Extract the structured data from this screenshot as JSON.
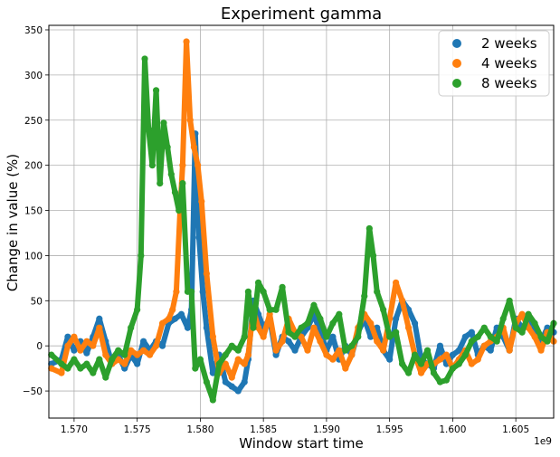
{
  "chart_data": {
    "type": "scatter",
    "title": "Experiment gamma",
    "xlabel": "Window start time",
    "ylabel": "Change in value (%)",
    "x_scale_label": "1e9",
    "xlim": [
      1.568,
      1.608
    ],
    "ylim": [
      -80,
      355
    ],
    "x_ticks": [
      1.57,
      1.575,
      1.58,
      1.585,
      1.59,
      1.595,
      1.6,
      1.605
    ],
    "x_tick_labels": [
      "1.570",
      "1.575",
      "1.580",
      "1.585",
      "1.590",
      "1.595",
      "1.600",
      "1.605"
    ],
    "y_ticks": [
      -50,
      0,
      50,
      100,
      150,
      200,
      250,
      300,
      350
    ],
    "y_tick_labels": [
      "−50",
      "0",
      "50",
      "100",
      "150",
      "200",
      "250",
      "300",
      "350"
    ],
    "grid": true,
    "legend_position": "top-right",
    "series": [
      {
        "name": "2 weeks",
        "color": "#1f77b4",
        "x": [
          1.5682,
          1.569,
          1.5695,
          1.57,
          1.5705,
          1.571,
          1.5715,
          1.572,
          1.5725,
          1.573,
          1.5735,
          1.574,
          1.5745,
          1.575,
          1.5755,
          1.576,
          1.5765,
          1.577,
          1.5775,
          1.578,
          1.5785,
          1.579,
          1.5793,
          1.5796,
          1.5799,
          1.5802,
          1.5805,
          1.581,
          1.5815,
          1.582,
          1.5825,
          1.583,
          1.5835,
          1.5838,
          1.5842,
          1.5846,
          1.585,
          1.5855,
          1.586,
          1.5865,
          1.587,
          1.5875,
          1.588,
          1.5885,
          1.589,
          1.5895,
          1.59,
          1.5905,
          1.591,
          1.5915,
          1.592,
          1.5925,
          1.593,
          1.5935,
          1.594,
          1.5945,
          1.595,
          1.5955,
          1.596,
          1.5965,
          1.597,
          1.5975,
          1.598,
          1.5985,
          1.599,
          1.5995,
          1.6,
          1.6005,
          1.601,
          1.6015,
          1.602,
          1.6025,
          1.603,
          1.6035,
          1.604,
          1.6045,
          1.605,
          1.6055,
          1.606,
          1.6065,
          1.607,
          1.6075,
          1.608
        ],
        "y": [
          -20,
          -15,
          10,
          -5,
          5,
          -8,
          10,
          30,
          5,
          -20,
          -10,
          -25,
          -10,
          -20,
          5,
          -5,
          5,
          0,
          25,
          30,
          35,
          20,
          40,
          235,
          120,
          60,
          20,
          -30,
          -10,
          -40,
          -45,
          -50,
          -40,
          -15,
          50,
          35,
          20,
          30,
          -10,
          10,
          5,
          -5,
          10,
          20,
          35,
          15,
          -5,
          10,
          -15,
          0,
          -10,
          15,
          30,
          10,
          20,
          -5,
          -15,
          30,
          50,
          40,
          25,
          -15,
          -20,
          -25,
          0,
          -20,
          -10,
          -5,
          10,
          15,
          -10,
          0,
          -5,
          20,
          10,
          -5,
          30,
          20,
          25,
          15,
          5,
          20,
          15
        ]
      },
      {
        "name": "4 weeks",
        "color": "#ff7f0e",
        "x": [
          1.5682,
          1.569,
          1.5695,
          1.57,
          1.5705,
          1.571,
          1.5715,
          1.572,
          1.5725,
          1.573,
          1.5735,
          1.574,
          1.5745,
          1.575,
          1.5755,
          1.576,
          1.5765,
          1.577,
          1.5775,
          1.5778,
          1.5781,
          1.5784,
          1.5786,
          1.5789,
          1.5792,
          1.5795,
          1.5798,
          1.5801,
          1.5805,
          1.581,
          1.5815,
          1.582,
          1.5825,
          1.583,
          1.5835,
          1.5838,
          1.5842,
          1.5846,
          1.585,
          1.5855,
          1.586,
          1.5865,
          1.587,
          1.5875,
          1.588,
          1.5885,
          1.589,
          1.5895,
          1.59,
          1.5905,
          1.591,
          1.5915,
          1.592,
          1.5925,
          1.593,
          1.5935,
          1.594,
          1.5945,
          1.595,
          1.5955,
          1.596,
          1.5965,
          1.597,
          1.5975,
          1.598,
          1.5985,
          1.599,
          1.5995,
          1.6,
          1.6005,
          1.601,
          1.6015,
          1.602,
          1.6025,
          1.603,
          1.6035,
          1.604,
          1.6045,
          1.605,
          1.6055,
          1.606,
          1.6065,
          1.607,
          1.6075,
          1.608
        ],
        "y": [
          -25,
          -30,
          0,
          10,
          -5,
          5,
          0,
          20,
          -10,
          -20,
          -15,
          -20,
          -5,
          -10,
          -5,
          -10,
          0,
          25,
          30,
          40,
          60,
          150,
          200,
          337,
          250,
          220,
          200,
          160,
          80,
          10,
          -30,
          -20,
          -35,
          -15,
          -20,
          -10,
          40,
          20,
          10,
          35,
          -5,
          5,
          30,
          15,
          10,
          -5,
          20,
          5,
          -10,
          -15,
          -5,
          -25,
          -10,
          20,
          35,
          25,
          5,
          -5,
          30,
          70,
          50,
          20,
          -10,
          -30,
          -20,
          -20,
          -15,
          -10,
          -25,
          -15,
          -5,
          -20,
          -15,
          0,
          5,
          10,
          20,
          -5,
          25,
          35,
          20,
          10,
          -5,
          15,
          5
        ]
      },
      {
        "name": "8 weeks",
        "color": "#2ca02c",
        "x": [
          1.5682,
          1.569,
          1.5695,
          1.57,
          1.5705,
          1.571,
          1.5715,
          1.572,
          1.5725,
          1.573,
          1.5735,
          1.574,
          1.5745,
          1.575,
          1.5753,
          1.5756,
          1.5759,
          1.5762,
          1.5765,
          1.5768,
          1.5771,
          1.5774,
          1.5777,
          1.578,
          1.5783,
          1.5786,
          1.579,
          1.5793,
          1.5796,
          1.58,
          1.5805,
          1.581,
          1.5815,
          1.582,
          1.5825,
          1.583,
          1.5835,
          1.5838,
          1.5842,
          1.5846,
          1.585,
          1.5855,
          1.586,
          1.5865,
          1.587,
          1.5875,
          1.588,
          1.5885,
          1.589,
          1.5895,
          1.59,
          1.5905,
          1.591,
          1.5915,
          1.592,
          1.5925,
          1.593,
          1.5934,
          1.5937,
          1.594,
          1.5945,
          1.595,
          1.5955,
          1.596,
          1.5965,
          1.597,
          1.5975,
          1.598,
          1.5985,
          1.599,
          1.5995,
          1.6,
          1.6005,
          1.601,
          1.6015,
          1.602,
          1.6025,
          1.603,
          1.6035,
          1.604,
          1.6045,
          1.605,
          1.6055,
          1.606,
          1.6065,
          1.607,
          1.6075,
          1.608
        ],
        "y": [
          -10,
          -20,
          -25,
          -15,
          -25,
          -20,
          -30,
          -15,
          -35,
          -15,
          -5,
          -10,
          20,
          40,
          100,
          318,
          240,
          200,
          283,
          180,
          247,
          220,
          190,
          170,
          150,
          180,
          60,
          60,
          -25,
          -15,
          -40,
          -60,
          -20,
          -10,
          0,
          -5,
          10,
          60,
          20,
          70,
          60,
          40,
          40,
          65,
          15,
          10,
          20,
          25,
          45,
          30,
          10,
          25,
          35,
          -5,
          0,
          10,
          55,
          130,
          100,
          60,
          40,
          10,
          15,
          -20,
          -30,
          -10,
          -20,
          -5,
          -30,
          -40,
          -38,
          -25,
          -20,
          -10,
          5,
          10,
          20,
          10,
          5,
          30,
          50,
          20,
          15,
          35,
          25,
          10,
          5,
          25
        ]
      }
    ]
  }
}
